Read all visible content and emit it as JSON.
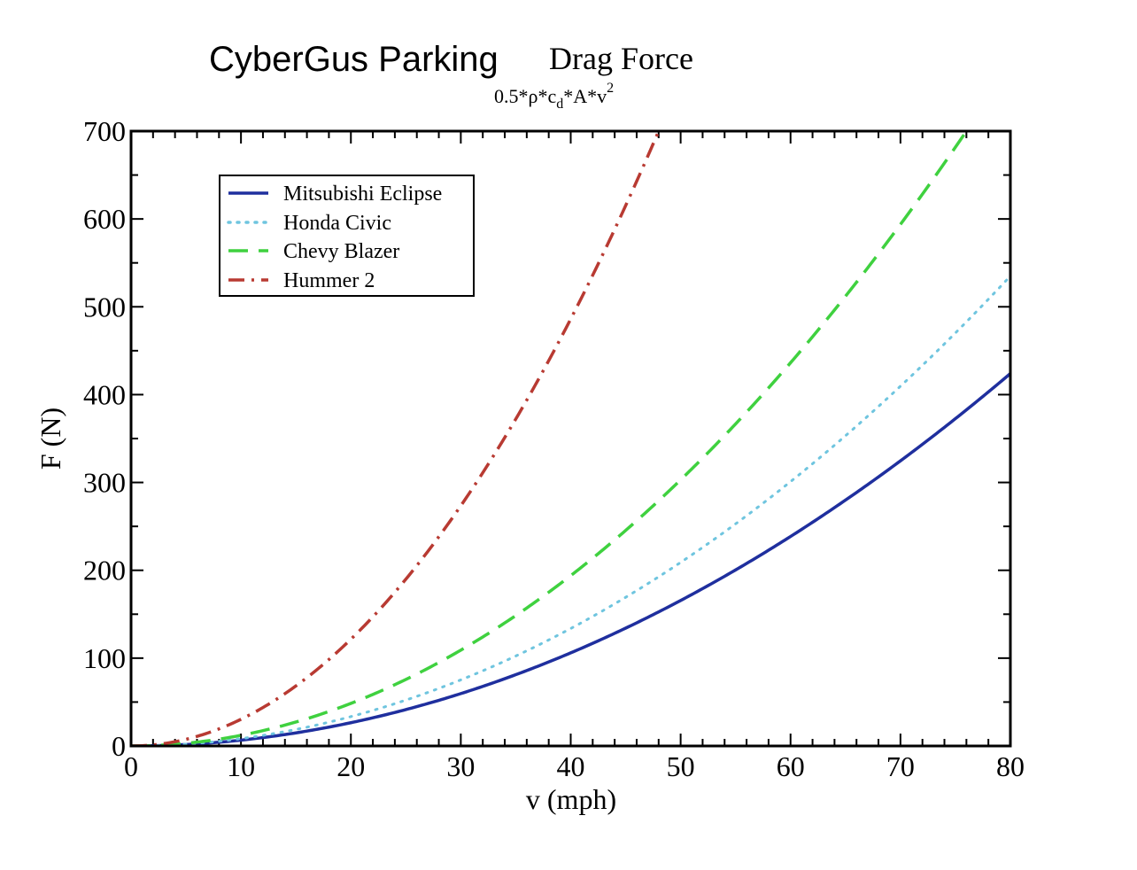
{
  "header": {
    "brand": "CyberGus Parking",
    "title": "Drag Force",
    "subtitle_base": "0.5*ρ*c",
    "subtitle_sub": "d",
    "subtitle_mid": "*A*v",
    "subtitle_sup": "2"
  },
  "chart_data": {
    "type": "line",
    "xlabel": "v (mph)",
    "ylabel": "F (N)",
    "xlim": [
      0,
      80
    ],
    "ylim": [
      0,
      700
    ],
    "xticks": [
      "0",
      "10",
      "20",
      "30",
      "40",
      "50",
      "60",
      "70",
      "80"
    ],
    "yticks": [
      "0",
      "100",
      "200",
      "300",
      "400",
      "500",
      "600",
      "700"
    ],
    "grid": false,
    "legend_position": "top-left",
    "series": [
      {
        "name": "Mitsubishi Eclipse",
        "style": "solid",
        "color": "#1f2f9e",
        "x": [
          0,
          10,
          20,
          30,
          40,
          50,
          60,
          70,
          80
        ],
        "y": [
          0,
          6.6,
          26.5,
          59.6,
          106,
          165.6,
          238.5,
          324.6,
          424
        ]
      },
      {
        "name": "Honda Civic",
        "style": "dotted",
        "color": "#6fc5df",
        "x": [
          0,
          10,
          20,
          30,
          40,
          50,
          60,
          70,
          80
        ],
        "y": [
          0,
          8.4,
          33.4,
          75.2,
          133.8,
          209,
          301,
          409.7,
          535
        ]
      },
      {
        "name": "Chevy Blazer",
        "style": "dashed",
        "color": "#3fd13f",
        "x": [
          0,
          10,
          20,
          30,
          40,
          50,
          60,
          70,
          76
        ],
        "y": [
          0,
          12.1,
          48.5,
          109.1,
          194,
          303,
          436.3,
          593.9,
          700
        ]
      },
      {
        "name": "Hummer 2",
        "style": "dashdot",
        "color": "#b83a32",
        "x": [
          0,
          10,
          20,
          30,
          40,
          48
        ],
        "y": [
          0,
          30.4,
          121.5,
          273.4,
          486,
          700
        ]
      }
    ]
  }
}
